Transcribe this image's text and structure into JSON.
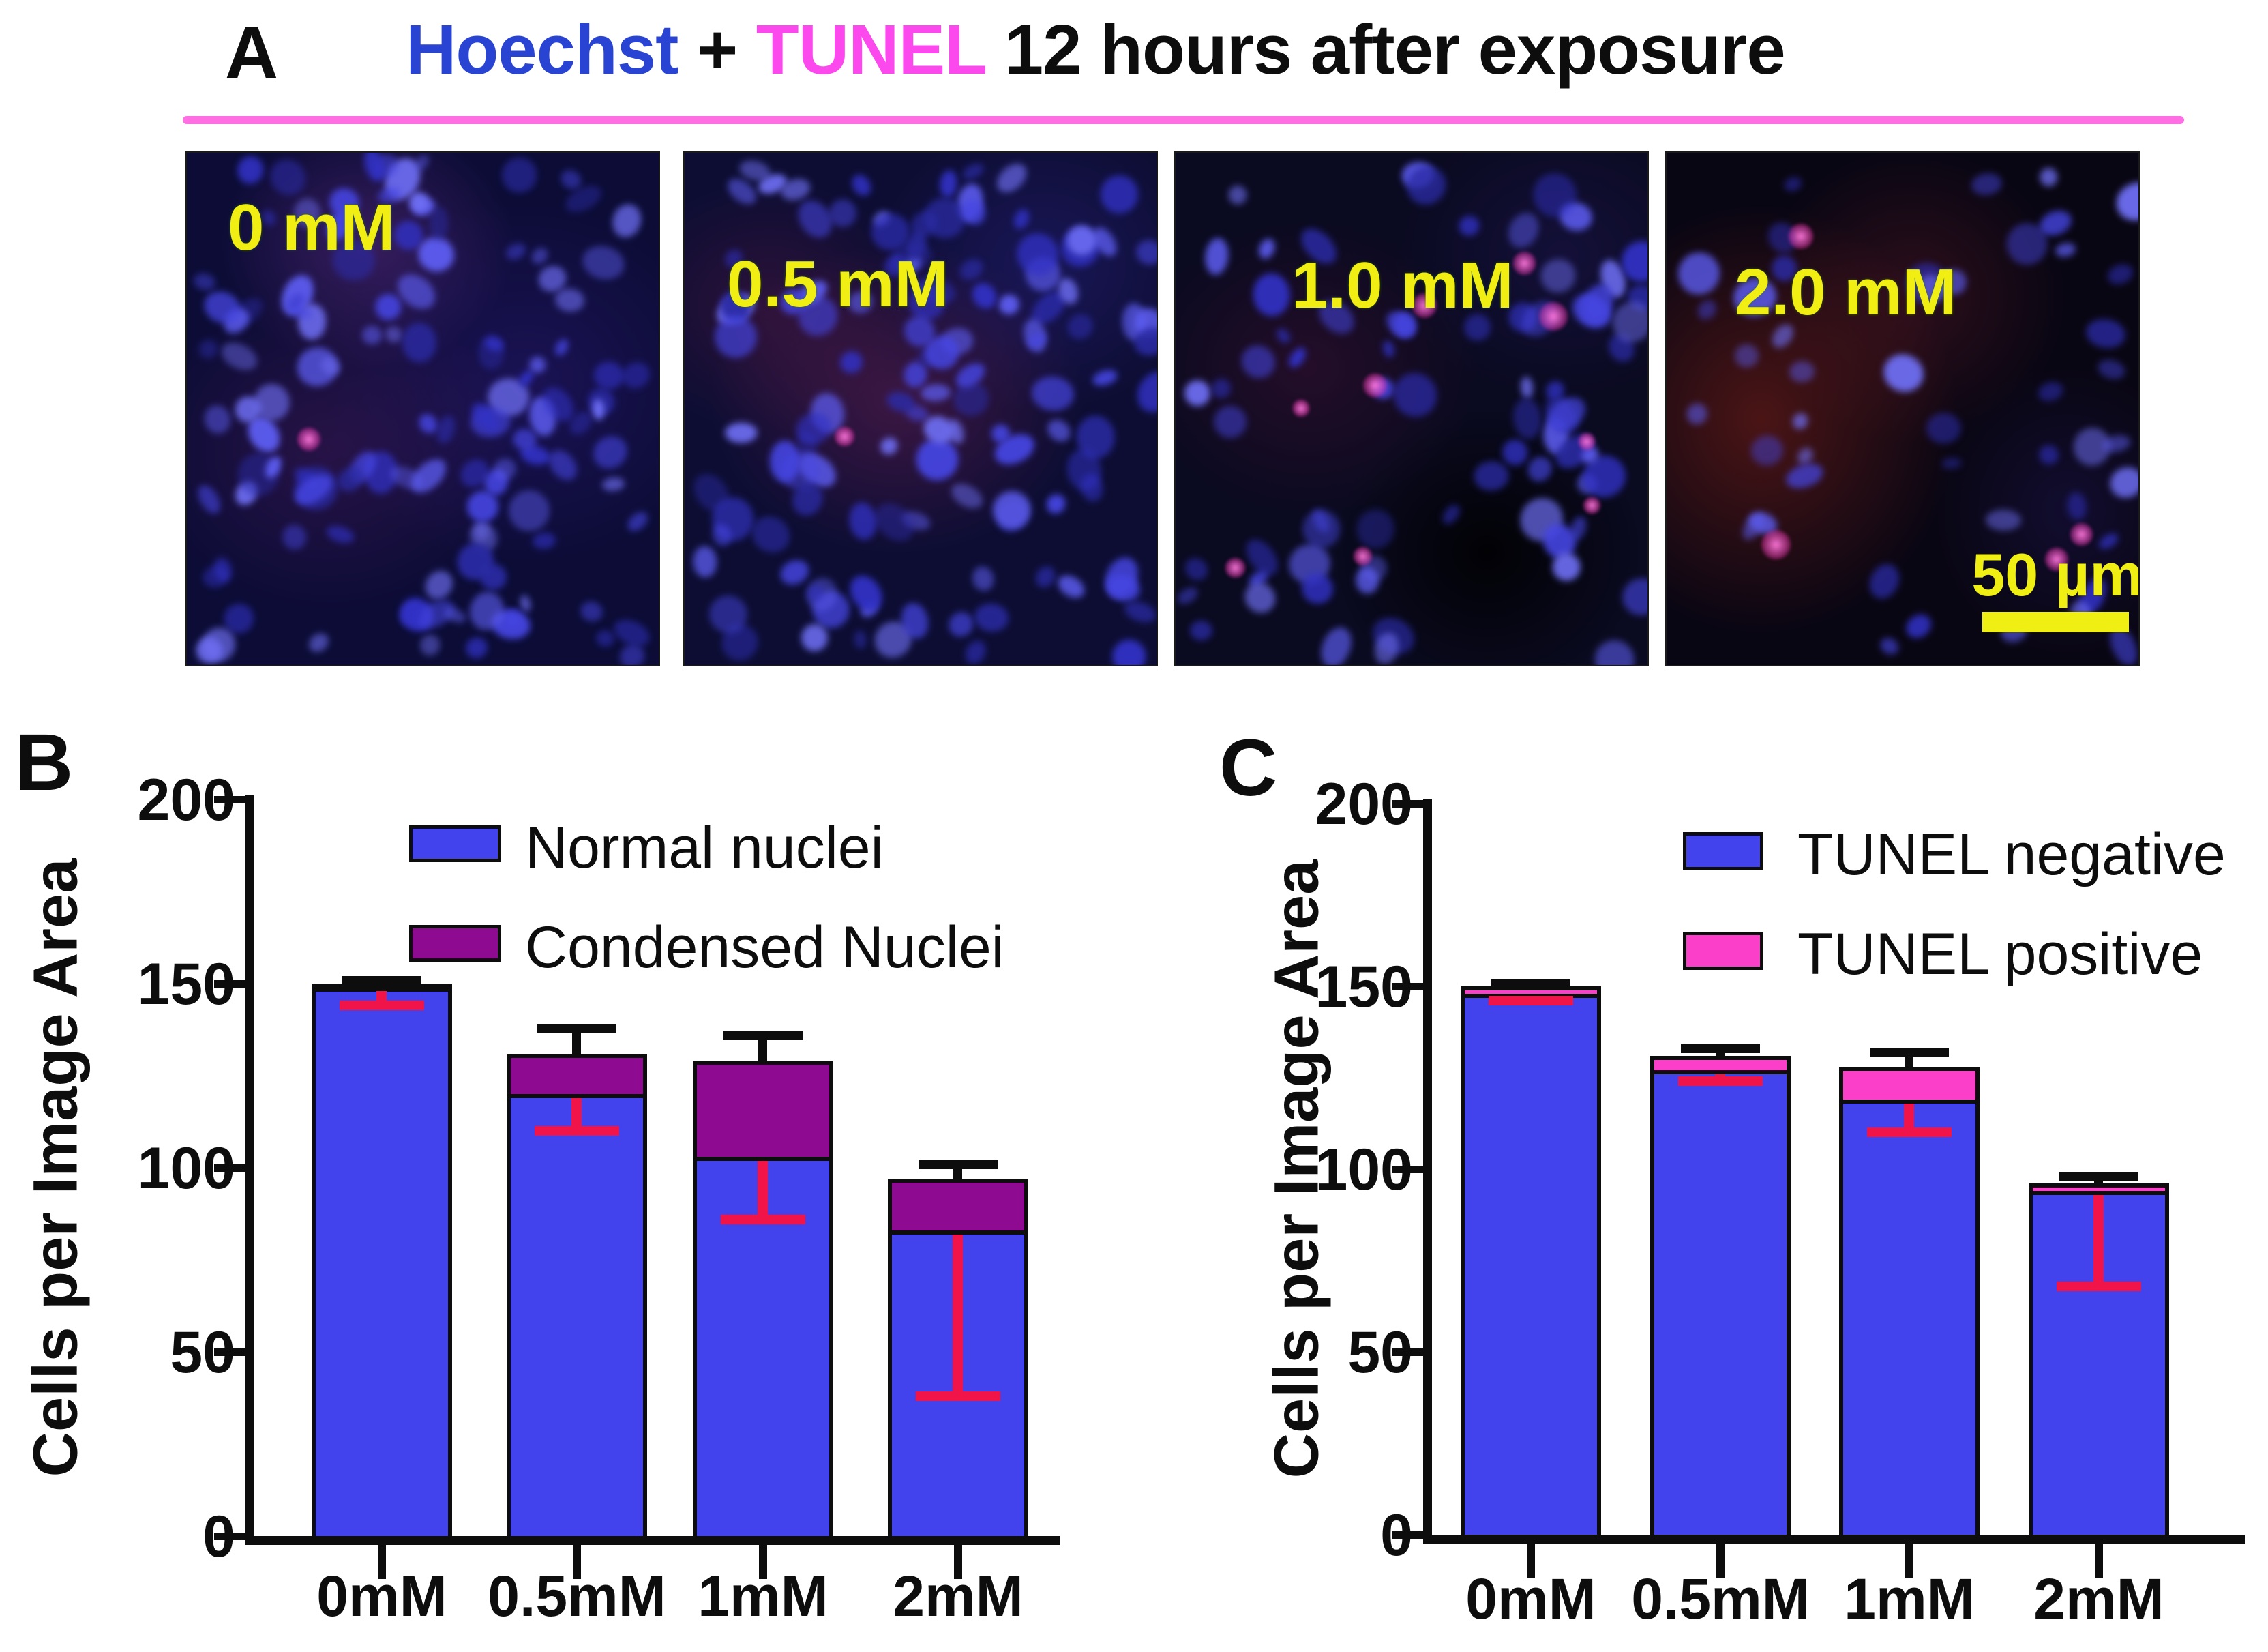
{
  "figure": {
    "panel_a_label": "A",
    "panel_b_label": "B",
    "panel_c_label": "C"
  },
  "title": {
    "hoechst": "Hoechst",
    "plus": "+",
    "tunel": "TUNEL",
    "suffix": "12 hours after exposure",
    "hoechst_color": "#2944d2",
    "tunel_color": "#fc49ee",
    "underline_color": "#ff6fe3"
  },
  "microscopy": {
    "scale_bar_label": "50 µm",
    "label_color": "#f0ee12",
    "stain_colors": {
      "hoechst_nuclei": "#4444e0",
      "tunel_spots": "#ff5fd0"
    },
    "images": [
      {
        "label": "0 mM",
        "nuclei_density": "dense",
        "tunel_positive_spots": 1
      },
      {
        "label": "0.5 mM",
        "nuclei_density": "dense",
        "tunel_positive_spots": 1
      },
      {
        "label": "1.0 mM",
        "nuclei_density": "medium",
        "tunel_positive_spots": 9
      },
      {
        "label": "2.0 mM",
        "nuclei_density": "sparse",
        "tunel_positive_spots": 4
      }
    ]
  },
  "chart_data": [
    {
      "id": "B",
      "type": "bar",
      "stacked": true,
      "title": "",
      "xlabel": "",
      "ylabel": "Cells per Image Area",
      "ylim": [
        0,
        200
      ],
      "yticks": [
        0,
        50,
        100,
        150,
        200
      ],
      "grid": false,
      "legend_position": "top-right-inside",
      "categories": [
        "0mM",
        "0.5mM",
        "1mM",
        "2mM"
      ],
      "series": [
        {
          "name": "Normal nuclei",
          "color": "#4343ee",
          "values": [
            149,
            120,
            103,
            83
          ]
        },
        {
          "name": "Condensed Nuclei",
          "color": "#8d0a91",
          "values": [
            1,
            11,
            26,
            14
          ]
        }
      ],
      "stack_totals": [
        150,
        131,
        129,
        97
      ],
      "upper_error_top": [
        151,
        138,
        136,
        101
      ],
      "lower_error_bottom": [
        144,
        110,
        86,
        38
      ],
      "error_bar_colors": {
        "upper": "#0d0d0d",
        "lower": "#f01448"
      }
    },
    {
      "id": "C",
      "type": "bar",
      "stacked": true,
      "title": "",
      "xlabel": "",
      "ylabel": "Cells per Image Area",
      "ylim": [
        0,
        200
      ],
      "yticks": [
        0,
        50,
        100,
        150,
        200
      ],
      "grid": false,
      "legend_position": "top-right-inside",
      "categories": [
        "0mM",
        "0.5mM",
        "1mM",
        "2mM"
      ],
      "series": [
        {
          "name": "TUNEL negative",
          "color": "#4343ee",
          "values": [
            148,
            127,
            119,
            94
          ]
        },
        {
          "name": "TUNEL positive",
          "color": "#fb3fc8",
          "values": [
            2,
            4,
            9,
            2
          ]
        }
      ],
      "stack_totals": [
        150,
        131,
        128,
        96
      ],
      "upper_error_top": [
        151,
        133,
        132,
        98
      ],
      "lower_error_bottom": [
        146,
        124,
        110,
        68
      ],
      "error_bar_colors": {
        "upper": "#0d0d0d",
        "lower": "#f01448"
      }
    }
  ]
}
